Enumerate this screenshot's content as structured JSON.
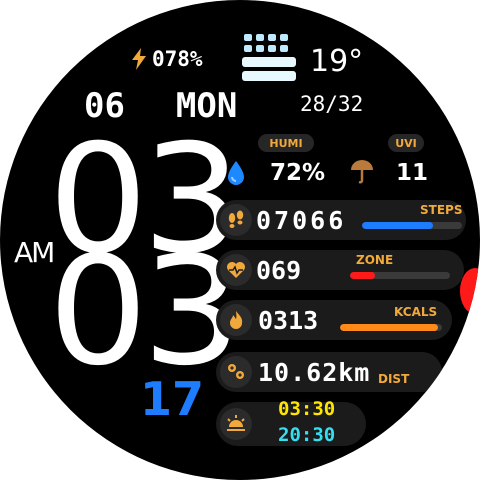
{
  "status": {
    "battery": "078%",
    "temperature": "19°",
    "moon": "28/32"
  },
  "date": {
    "day": "06",
    "weekday": "MON"
  },
  "time": {
    "hour": "03",
    "minute": "03",
    "ampm": "AM"
  },
  "date_number": "17",
  "weather": {
    "humi_label": "HUMI",
    "humi_value": "72%",
    "uvi_label": "UVI",
    "uvi_value": "11"
  },
  "rows": {
    "steps": {
      "value": "07066",
      "label": "STEPS",
      "progress": 0.71,
      "color": "#1E7DFF"
    },
    "heart": {
      "value": "069",
      "label": "ZONE",
      "progress": 0.25,
      "color": "#FF1A1A"
    },
    "kcals": {
      "value": "0313",
      "label": "KCALS",
      "progress": 0.96,
      "color": "#FF8A1A"
    },
    "distance": {
      "value": "10.62km",
      "label": "DIST"
    }
  },
  "sun": {
    "sunrise": "03:30",
    "sunset": "20:30"
  },
  "icons": [
    "lightning-icon",
    "weather-grid-icon",
    "water-drop-icon",
    "umbrella-icon",
    "footsteps-icon",
    "heart-icon",
    "flame-icon",
    "location-pins-icon",
    "sunrise-icon"
  ],
  "colors": {
    "accent": "#F2A93B",
    "blue": "#1E7DFF",
    "red": "#FF1A1A",
    "orange": "#FF8A1A",
    "yellow": "#FFE600",
    "cyan": "#34E0F0"
  }
}
